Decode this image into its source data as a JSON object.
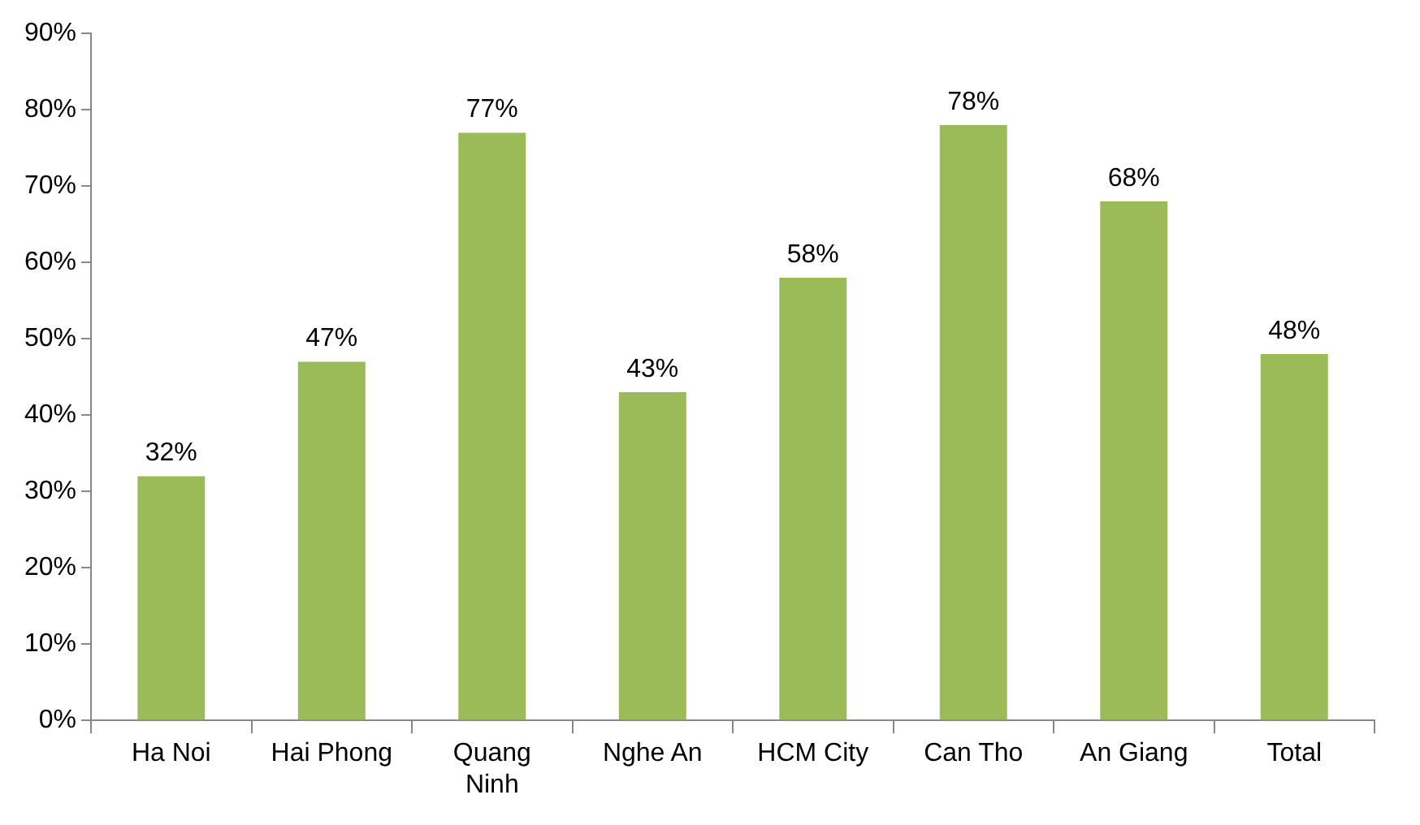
{
  "chart_data": {
    "type": "bar",
    "categories": [
      "Ha Noi",
      "Hai Phong",
      "Quang Ninh",
      "Nghe An",
      "HCM City",
      "Can Tho",
      "An Giang",
      "Total"
    ],
    "values": [
      32,
      47,
      77,
      43,
      58,
      78,
      68,
      48
    ],
    "value_labels": [
      "32%",
      "47%",
      "77%",
      "43%",
      "58%",
      "78%",
      "68%",
      "48%"
    ],
    "color": "#9bbb59",
    "ylim": [
      0,
      90
    ],
    "yticks": [
      {
        "value": 0,
        "label": "0%"
      },
      {
        "value": 10,
        "label": "10%"
      },
      {
        "value": 20,
        "label": "20%"
      },
      {
        "value": 30,
        "label": "30%"
      },
      {
        "value": 40,
        "label": "40%"
      },
      {
        "value": 50,
        "label": "50%"
      },
      {
        "value": 60,
        "label": "60%"
      },
      {
        "value": 70,
        "label": "70%"
      },
      {
        "value": 80,
        "label": "80%"
      },
      {
        "value": 90,
        "label": "90%"
      }
    ],
    "grid": false,
    "legend": false
  }
}
